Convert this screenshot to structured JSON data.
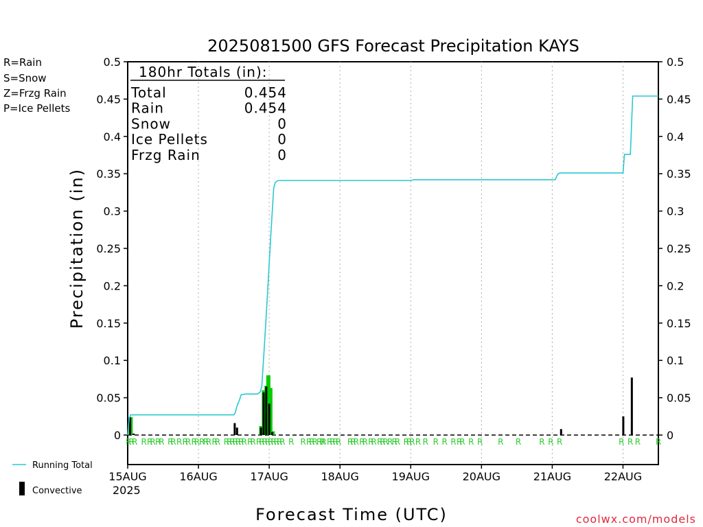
{
  "chart_data": {
    "type": "bar",
    "title": "2025081500 GFS Forecast Precipitation KAYS",
    "xlabel": "Forecast Time (UTC)",
    "ylabel": "Precipitation (in)",
    "ylim": [
      0,
      0.5
    ],
    "xlim_hours": [
      0,
      180
    ],
    "y_ticks": [
      "0",
      "0.05",
      "0.1",
      "0.15",
      "0.2",
      "0.25",
      "0.3",
      "0.35",
      "0.4",
      "0.45",
      "0.5"
    ],
    "x_ticks": [
      {
        "label": "15AUG",
        "hour": 0
      },
      {
        "label": "16AUG",
        "hour": 24
      },
      {
        "label": "17AUG",
        "hour": 48
      },
      {
        "label": "18AUG",
        "hour": 72
      },
      {
        "label": "19AUG",
        "hour": 96
      },
      {
        "label": "20AUG",
        "hour": 120
      },
      {
        "label": "21AUG",
        "hour": 144
      },
      {
        "label": "22AUG",
        "hour": 168
      }
    ],
    "x_year_label": "2025",
    "grid": "vertical dotted at each day",
    "totals_box": {
      "heading": "180hr Totals (in):",
      "rows": [
        {
          "label": "Total",
          "value": "0.454"
        },
        {
          "label": "Rain",
          "value": "0.454"
        },
        {
          "label": "Snow",
          "value": "0"
        },
        {
          "label": "Ice Pellets",
          "value": "0"
        },
        {
          "label": "Frzg Rain",
          "value": "0"
        }
      ]
    },
    "precip_type_legend": [
      {
        "text": "R=Rain",
        "color": "#2ecc2e"
      },
      {
        "text": "S=Snow",
        "color": "#3a4fd8"
      },
      {
        "text": "Z=Frzg Rain",
        "color": "#f0903a"
      },
      {
        "text": "P=Ice Pellets",
        "color": "#e83aa0"
      }
    ],
    "series": [
      {
        "name": "Running Total",
        "color": "#28c8d0",
        "points": [
          [
            0,
            0.0
          ],
          [
            0.5,
            0.022
          ],
          [
            1,
            0.027
          ],
          [
            3,
            0.027
          ],
          [
            36,
            0.027
          ],
          [
            36.5,
            0.03
          ],
          [
            37,
            0.038
          ],
          [
            38,
            0.048
          ],
          [
            38.5,
            0.054
          ],
          [
            40,
            0.055
          ],
          [
            44,
            0.055
          ],
          [
            45,
            0.058
          ],
          [
            45.5,
            0.066
          ],
          [
            46.5,
            0.128
          ],
          [
            47.5,
            0.195
          ],
          [
            48.5,
            0.265
          ],
          [
            49.5,
            0.33
          ],
          [
            50,
            0.338
          ],
          [
            51,
            0.341
          ],
          [
            96,
            0.341
          ],
          [
            97,
            0.342
          ],
          [
            145,
            0.342
          ],
          [
            145.8,
            0.349
          ],
          [
            146.5,
            0.351
          ],
          [
            168,
            0.351
          ],
          [
            168.5,
            0.376
          ],
          [
            170.5,
            0.376
          ],
          [
            171.3,
            0.454
          ],
          [
            180,
            0.454
          ]
        ]
      },
      {
        "name": "Convective",
        "color": "#000000",
        "bars": [
          [
            0.8,
            0.024
          ],
          [
            2.0,
            0.002
          ],
          [
            36.3,
            0.016
          ],
          [
            37.1,
            0.01
          ],
          [
            45.2,
            0.01
          ],
          [
            46.1,
            0.057
          ],
          [
            47.0,
            0.065
          ],
          [
            48.0,
            0.042
          ],
          [
            49.0,
            0.004
          ],
          [
            147.0,
            0.008
          ],
          [
            168.1,
            0.025
          ],
          [
            171.0,
            0.077
          ]
        ]
      },
      {
        "name": "Rain",
        "color": "#00cc00",
        "bars": [
          [
            1.0,
            0.024
          ],
          [
            45.3,
            0.012
          ],
          [
            46.2,
            0.06
          ],
          [
            47.1,
            0.066
          ],
          [
            47.7,
            0.08
          ],
          [
            48.4,
            0.063
          ],
          [
            49.2,
            0.005
          ]
        ]
      }
    ],
    "precip_type_marks": {
      "symbol": "R",
      "hours": [
        0.3,
        1.3,
        2.4,
        5.5,
        7.5,
        8.5,
        10.3,
        11.5,
        14.5,
        15.5,
        17.5,
        19.5,
        20.5,
        22.5,
        23.5,
        25.2,
        26.5,
        27.5,
        29.5,
        30.5,
        33.5,
        34.5,
        35.5,
        36.5,
        37.5,
        38.5,
        39.5,
        41.5,
        42.5,
        44.5,
        45.5,
        46.5,
        47.5,
        48.5,
        49.5,
        50.5,
        51.5,
        52.5,
        55.5,
        59.5,
        61.5,
        62.5,
        63.5,
        65.0,
        66.0,
        66.5,
        68.5,
        69.5,
        70.5,
        71.5,
        75.5,
        76.5,
        77.5,
        79.5,
        80.5,
        82.5,
        83.5,
        85.5,
        86.5,
        87.5,
        89.0,
        90.5,
        91.5,
        94.5,
        95.5,
        96.5,
        98.5,
        101.0,
        104.5,
        107.5,
        110.5,
        112.5,
        113.5,
        116.5,
        119.5,
        126.5,
        132.5,
        140.5,
        143.5,
        146.5,
        167.5,
        170.5,
        173.0,
        180.0
      ]
    },
    "legend_bottom": [
      {
        "name": "Running Total",
        "style": "line",
        "color": "#28c8d0"
      },
      {
        "name": "Convective",
        "style": "bar",
        "color": "#000000"
      }
    ],
    "credit": "coolwx.com/models"
  }
}
